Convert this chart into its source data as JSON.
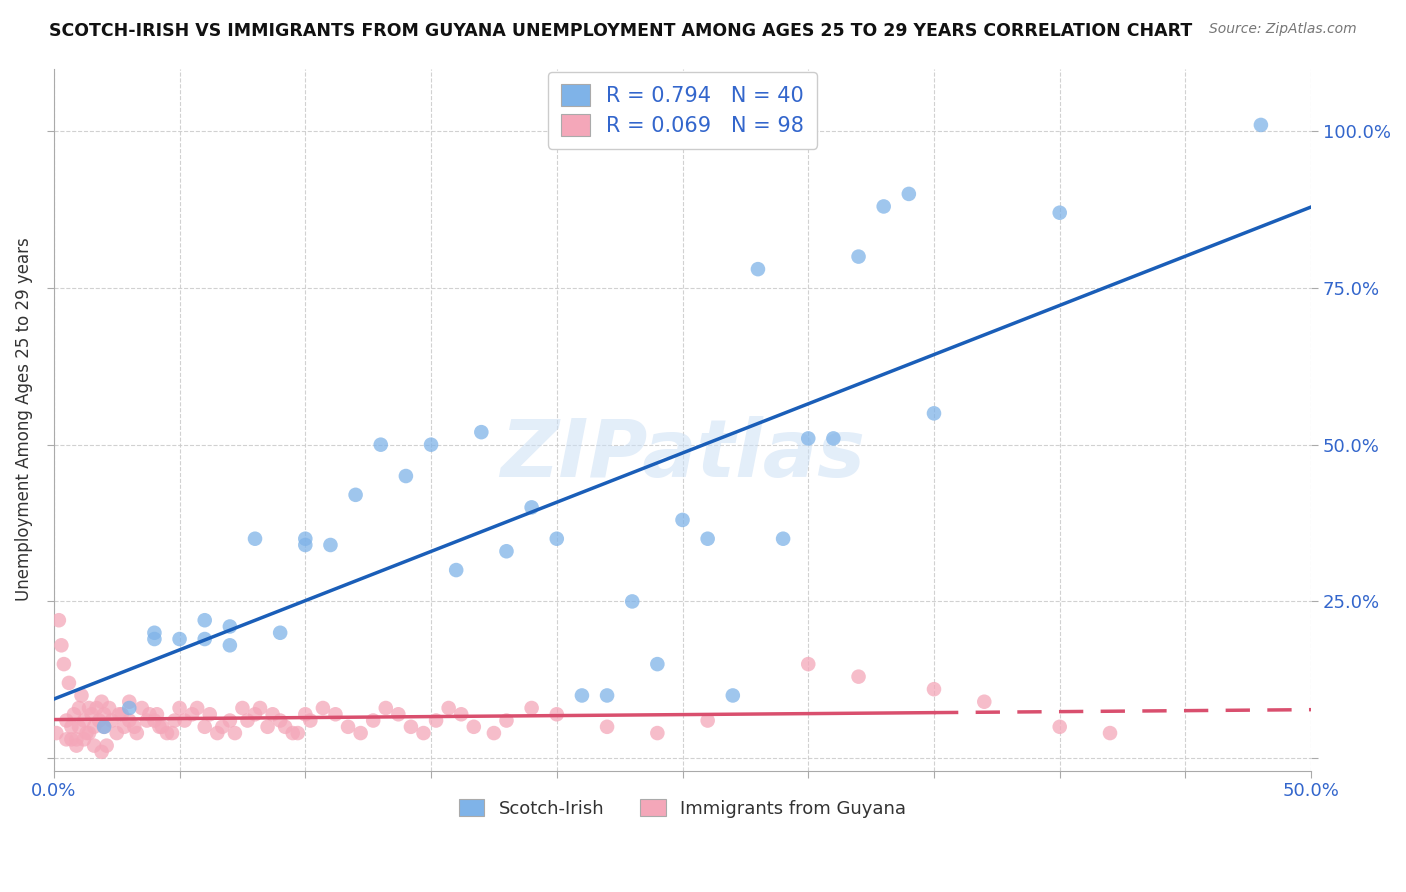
{
  "title": "SCOTCH-IRISH VS IMMIGRANTS FROM GUYANA UNEMPLOYMENT AMONG AGES 25 TO 29 YEARS CORRELATION CHART",
  "source": "Source: ZipAtlas.com",
  "ylabel": "Unemployment Among Ages 25 to 29 years",
  "xlim": [
    0,
    0.5
  ],
  "ylim": [
    -0.02,
    1.1
  ],
  "scotch_irish_color": "#7fb3e8",
  "guyana_color": "#f4a7b9",
  "scotch_irish_line_color": "#1a5eb8",
  "guyana_line_color": "#d94f6e",
  "watermark": "ZIPatlas",
  "background_color": "#ffffff",
  "grid_color": "#cccccc",
  "scotch_irish_x": [
    0.02,
    0.03,
    0.04,
    0.05,
    0.06,
    0.07,
    0.08,
    0.09,
    0.1,
    0.11,
    0.12,
    0.13,
    0.14,
    0.15,
    0.16,
    0.17,
    0.18,
    0.19,
    0.2,
    0.21,
    0.22,
    0.23,
    0.24,
    0.25,
    0.26,
    0.27,
    0.28,
    0.29,
    0.3,
    0.31,
    0.32,
    0.33,
    0.34,
    0.35,
    0.4,
    0.48,
    0.06,
    0.07,
    0.1,
    0.04
  ],
  "scotch_irish_y": [
    0.05,
    0.08,
    0.2,
    0.19,
    0.22,
    0.21,
    0.35,
    0.2,
    0.35,
    0.34,
    0.42,
    0.5,
    0.45,
    0.5,
    0.3,
    0.52,
    0.33,
    0.4,
    0.35,
    0.1,
    0.1,
    0.25,
    0.15,
    0.38,
    0.35,
    0.1,
    0.78,
    0.35,
    0.51,
    0.51,
    0.8,
    0.88,
    0.9,
    0.55,
    0.87,
    1.01,
    0.19,
    0.18,
    0.34,
    0.19
  ],
  "guyana_x": [
    0.001,
    0.005,
    0.007,
    0.008,
    0.009,
    0.01,
    0.01,
    0.012,
    0.013,
    0.015,
    0.016,
    0.017,
    0.018,
    0.019,
    0.02,
    0.02,
    0.022,
    0.023,
    0.025,
    0.027,
    0.03,
    0.03,
    0.032,
    0.035,
    0.038,
    0.04,
    0.042,
    0.045,
    0.048,
    0.05,
    0.055,
    0.06,
    0.065,
    0.07,
    0.075,
    0.08,
    0.085,
    0.09,
    0.095,
    0.1,
    0.002,
    0.003,
    0.004,
    0.006,
    0.011,
    0.014,
    0.026,
    0.028,
    0.033,
    0.037,
    0.041,
    0.043,
    0.047,
    0.052,
    0.057,
    0.062,
    0.067,
    0.072,
    0.077,
    0.082,
    0.087,
    0.092,
    0.097,
    0.102,
    0.107,
    0.112,
    0.117,
    0.122,
    0.127,
    0.132,
    0.137,
    0.142,
    0.147,
    0.152,
    0.157,
    0.162,
    0.167,
    0.175,
    0.18,
    0.19,
    0.2,
    0.22,
    0.24,
    0.26,
    0.3,
    0.32,
    0.35,
    0.37,
    0.4,
    0.42,
    0.005,
    0.007,
    0.009,
    0.012,
    0.014,
    0.016,
    0.019,
    0.021
  ],
  "guyana_y": [
    0.04,
    0.06,
    0.05,
    0.07,
    0.03,
    0.08,
    0.05,
    0.06,
    0.04,
    0.07,
    0.05,
    0.08,
    0.06,
    0.09,
    0.07,
    0.05,
    0.08,
    0.06,
    0.04,
    0.07,
    0.09,
    0.06,
    0.05,
    0.08,
    0.07,
    0.06,
    0.05,
    0.04,
    0.06,
    0.08,
    0.07,
    0.05,
    0.04,
    0.06,
    0.08,
    0.07,
    0.05,
    0.06,
    0.04,
    0.07,
    0.22,
    0.18,
    0.15,
    0.12,
    0.1,
    0.08,
    0.07,
    0.05,
    0.04,
    0.06,
    0.07,
    0.05,
    0.04,
    0.06,
    0.08,
    0.07,
    0.05,
    0.04,
    0.06,
    0.08,
    0.07,
    0.05,
    0.04,
    0.06,
    0.08,
    0.07,
    0.05,
    0.04,
    0.06,
    0.08,
    0.07,
    0.05,
    0.04,
    0.06,
    0.08,
    0.07,
    0.05,
    0.04,
    0.06,
    0.08,
    0.07,
    0.05,
    0.04,
    0.06,
    0.15,
    0.13,
    0.11,
    0.09,
    0.05,
    0.04,
    0.03,
    0.03,
    0.02,
    0.03,
    0.04,
    0.02,
    0.01,
    0.02
  ]
}
